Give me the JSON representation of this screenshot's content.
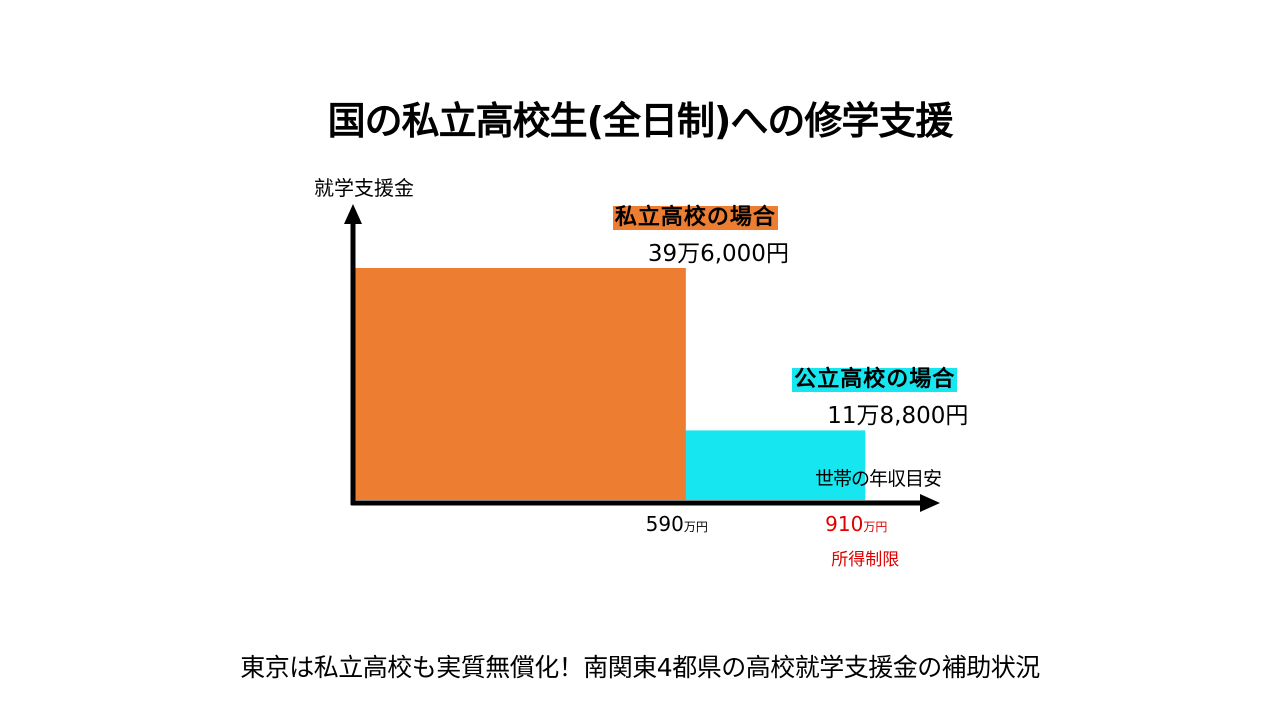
{
  "title": "国の私立高校生(全日制)への修学支援",
  "footer": "東京は私立高校も実質無償化！南関東4都県の高校就学支援金の補助状況",
  "chart_data": {
    "type": "bar",
    "ylabel": "就学支援金",
    "xlabel": "世帯の年収目安",
    "ylim": [
      0,
      500000
    ],
    "xlim": [
      0,
      1070
    ],
    "series": [
      {
        "name": "私立高校の場合",
        "value_label": "39万6,000円",
        "value": 396000,
        "x_end": 590,
        "color": "#ed7d31"
      },
      {
        "name": "公立高校の場合",
        "value_label": "11万8,800円",
        "value": 118800,
        "x_end": 910,
        "color": "#15e6f0"
      }
    ],
    "x_ticks": [
      {
        "value": 590,
        "number": "590",
        "unit": "万円",
        "color": "#000000",
        "note": ""
      },
      {
        "value": 910,
        "number": "910",
        "unit": "万円",
        "color": "#e00000",
        "note": "所得制限"
      }
    ]
  }
}
